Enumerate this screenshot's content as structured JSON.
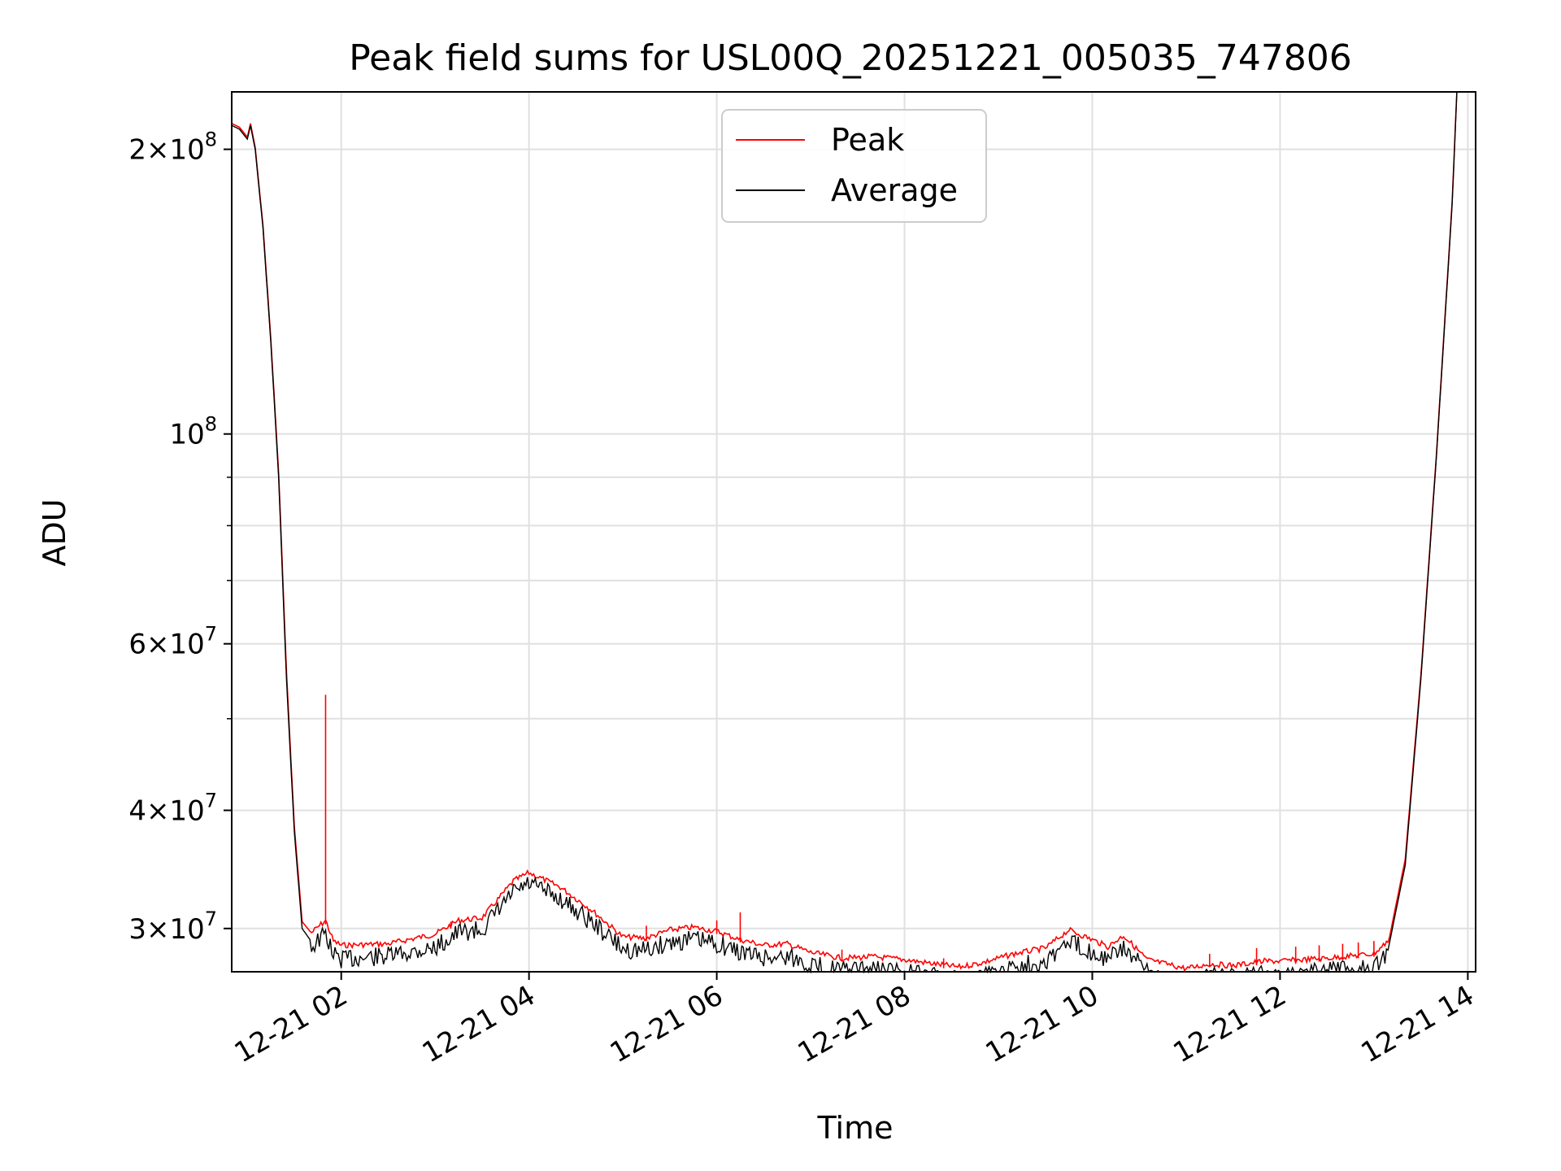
{
  "chart_data": {
    "type": "line",
    "title": "Peak field sums for USL00Q_20251221_005035_747806",
    "xlabel": "Time",
    "ylabel": "ADU",
    "x_scale": "time",
    "y_scale": "log",
    "xlim": [
      "2025-12-21 00:50",
      "2025-12-21 14:05"
    ],
    "ylim": [
      27000000,
      230000000
    ],
    "grid": true,
    "legend_placement": "upper-center",
    "colors": {
      "peak": "#ff0000",
      "average": "#000000",
      "grid": "#e0e0e0"
    },
    "x_ticks": [
      {
        "t": "2025-12-21 02:00",
        "label": "12-21 02"
      },
      {
        "t": "2025-12-21 04:00",
        "label": "12-21 04"
      },
      {
        "t": "2025-12-21 06:00",
        "label": "12-21 06"
      },
      {
        "t": "2025-12-21 08:00",
        "label": "12-21 08"
      },
      {
        "t": "2025-12-21 10:00",
        "label": "12-21 10"
      },
      {
        "t": "2025-12-21 12:00",
        "label": "12-21 12"
      },
      {
        "t": "2025-12-21 14:00",
        "label": "12-21 14"
      }
    ],
    "y_major_ticks": [
      {
        "v": 30000000,
        "mant": "3",
        "exp": "7"
      },
      {
        "v": 40000000,
        "mant": "4",
        "exp": "7"
      },
      {
        "v": 60000000,
        "mant": "6",
        "exp": "7"
      },
      {
        "v": 100000000,
        "mant": "",
        "exp": "8"
      },
      {
        "v": 200000000,
        "mant": "2",
        "exp": "8"
      }
    ],
    "y_minor_ticks": [
      50000000,
      70000000,
      80000000,
      90000000
    ],
    "series": [
      {
        "name": "Average",
        "x": [
          "2025-12-21 00:50",
          "2025-12-21 00:55",
          "2025-12-21 01:00",
          "2025-12-21 01:02",
          "2025-12-21 01:05",
          "2025-12-21 01:10",
          "2025-12-21 01:15",
          "2025-12-21 01:20",
          "2025-12-21 01:25",
          "2025-12-21 01:30",
          "2025-12-21 01:35",
          "2025-12-21 01:40",
          "2025-12-21 01:45",
          "2025-12-21 01:50",
          "2025-12-21 01:55",
          "2025-12-21 02:00",
          "2025-12-21 02:30",
          "2025-12-21 03:00",
          "2025-12-21 03:15",
          "2025-12-21 03:30",
          "2025-12-21 03:40",
          "2025-12-21 03:50",
          "2025-12-21 04:00",
          "2025-12-21 04:10",
          "2025-12-21 04:20",
          "2025-12-21 04:40",
          "2025-12-21 05:00",
          "2025-12-21 05:15",
          "2025-12-21 05:30",
          "2025-12-21 05:45",
          "2025-12-21 06:00",
          "2025-12-21 06:15",
          "2025-12-21 06:30",
          "2025-12-21 06:45",
          "2025-12-21 07:00",
          "2025-12-21 07:20",
          "2025-12-21 07:40",
          "2025-12-21 08:00",
          "2025-12-21 08:20",
          "2025-12-21 08:35",
          "2025-12-21 08:50",
          "2025-12-21 09:10",
          "2025-12-21 09:30",
          "2025-12-21 09:45",
          "2025-12-21 10:00",
          "2025-12-21 10:10",
          "2025-12-21 10:20",
          "2025-12-21 10:35",
          "2025-12-21 11:00",
          "2025-12-21 11:15",
          "2025-12-21 11:30",
          "2025-12-21 11:50",
          "2025-12-21 12:00",
          "2025-12-21 12:30",
          "2025-12-21 13:00",
          "2025-12-21 13:10",
          "2025-12-21 13:20",
          "2025-12-21 13:30",
          "2025-12-21 13:40",
          "2025-12-21 13:50",
          "2025-12-21 13:53"
        ],
        "values": [
          212000000,
          210000000,
          205000000,
          212000000,
          200000000,
          165000000,
          125000000,
          90000000,
          55000000,
          38000000,
          30000000,
          29200000,
          29800000,
          30300000,
          28800000,
          28500000,
          28700000,
          29300000,
          30400000,
          30600000,
          32000000,
          33500000,
          34200000,
          33600000,
          33000000,
          31200000,
          29200000,
          29100000,
          29700000,
          29900000,
          29600000,
          29000000,
          28600000,
          28700000,
          28100000,
          27700000,
          27800000,
          27600000,
          27300000,
          27100000,
          27400000,
          28000000,
          28400000,
          29700000,
          29000000,
          28500000,
          29300000,
          27600000,
          27000000,
          27300000,
          27200000,
          27500000,
          27500000,
          27700000,
          28000000,
          29000000,
          35000000,
          55000000,
          95000000,
          175000000,
          230000000
        ]
      },
      {
        "name": "Peak",
        "x": [
          "2025-12-21 00:50",
          "2025-12-21 00:55",
          "2025-12-21 01:00",
          "2025-12-21 01:02",
          "2025-12-21 01:05",
          "2025-12-21 01:10",
          "2025-12-21 01:15",
          "2025-12-21 01:20",
          "2025-12-21 01:25",
          "2025-12-21 01:30",
          "2025-12-21 01:35",
          "2025-12-21 01:40",
          "2025-12-21 01:45",
          "2025-12-21 01:50",
          "2025-12-21 01:55",
          "2025-12-21 02:00",
          "2025-12-21 02:30",
          "2025-12-21 03:00",
          "2025-12-21 03:15",
          "2025-12-21 03:30",
          "2025-12-21 03:40",
          "2025-12-21 03:50",
          "2025-12-21 04:00",
          "2025-12-21 04:10",
          "2025-12-21 04:20",
          "2025-12-21 04:40",
          "2025-12-21 05:00",
          "2025-12-21 05:15",
          "2025-12-21 05:30",
          "2025-12-21 05:45",
          "2025-12-21 06:00",
          "2025-12-21 06:15",
          "2025-12-21 06:30",
          "2025-12-21 06:45",
          "2025-12-21 07:00",
          "2025-12-21 07:20",
          "2025-12-21 07:40",
          "2025-12-21 08:00",
          "2025-12-21 08:20",
          "2025-12-21 08:35",
          "2025-12-21 08:50",
          "2025-12-21 09:10",
          "2025-12-21 09:30",
          "2025-12-21 09:45",
          "2025-12-21 10:00",
          "2025-12-21 10:10",
          "2025-12-21 10:20",
          "2025-12-21 10:35",
          "2025-12-21 11:00",
          "2025-12-21 11:15",
          "2025-12-21 11:30",
          "2025-12-21 11:50",
          "2025-12-21 12:00",
          "2025-12-21 12:30",
          "2025-12-21 13:00",
          "2025-12-21 13:10",
          "2025-12-21 13:20",
          "2025-12-21 13:30",
          "2025-12-21 13:40",
          "2025-12-21 13:50",
          "2025-12-21 13:53"
        ],
        "values": [
          213000000,
          211000000,
          206000000,
          213000000,
          201000000,
          166000000,
          126000000,
          91000000,
          56000000,
          38500000,
          30500000,
          29800000,
          30300000,
          30800000,
          29300000,
          29000000,
          29100000,
          29800000,
          30800000,
          31000000,
          32400000,
          33900000,
          34600000,
          34000000,
          33400000,
          31600000,
          29600000,
          29500000,
          30100000,
          30300000,
          30000000,
          29400000,
          29000000,
          29100000,
          28500000,
          28100000,
          28200000,
          28000000,
          27700000,
          27500000,
          27800000,
          28400000,
          28800000,
          30100000,
          29400000,
          28900000,
          29700000,
          28000000,
          27400000,
          27700000,
          27600000,
          27900000,
          27900000,
          28100000,
          28400000,
          29400000,
          35500000,
          55500000,
          95500000,
          176000000,
          231000000
        ],
        "spikes": [
          {
            "t": "2025-12-21 01:50",
            "v": 53000000
          },
          {
            "t": "2025-12-21 03:10",
            "v": 30500000
          },
          {
            "t": "2025-12-21 05:15",
            "v": 30200000
          },
          {
            "t": "2025-12-21 06:00",
            "v": 30600000
          },
          {
            "t": "2025-12-21 06:15",
            "v": 31200000
          },
          {
            "t": "2025-12-21 07:20",
            "v": 28500000
          },
          {
            "t": "2025-12-21 08:25",
            "v": 27900000
          },
          {
            "t": "2025-12-21 11:15",
            "v": 28200000
          },
          {
            "t": "2025-12-21 11:45",
            "v": 28600000
          },
          {
            "t": "2025-12-21 12:10",
            "v": 28700000
          },
          {
            "t": "2025-12-21 12:25",
            "v": 28800000
          },
          {
            "t": "2025-12-21 12:40",
            "v": 28900000
          },
          {
            "t": "2025-12-21 12:50",
            "v": 29000000
          },
          {
            "t": "2025-12-21 13:00",
            "v": 29100000
          }
        ]
      }
    ],
    "legend": [
      {
        "name": "Peak",
        "color": "#ff0000"
      },
      {
        "name": "Average",
        "color": "#000000"
      }
    ]
  }
}
